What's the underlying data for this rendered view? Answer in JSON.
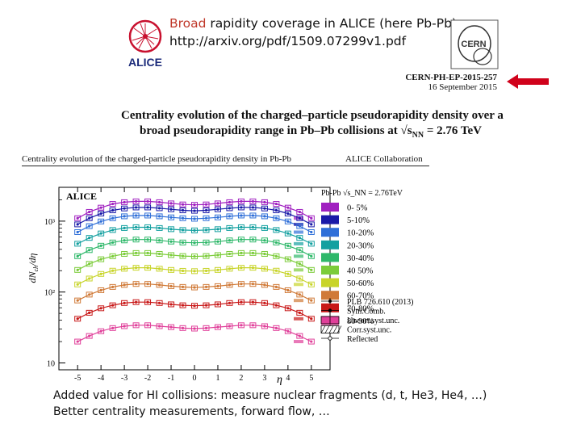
{
  "slide": {
    "title_highlight": "Broad",
    "title_rest": " rapidity coverage in ALICE (here Pb-Pb)",
    "arxiv_link": "http://arxiv.org/pdf/1509.07299v1.pdf",
    "alice_logo_text": "ALICE",
    "cern_logo_text": "CERN",
    "cern_report_id": "CERN-PH-EP-2015-257",
    "cern_report_date": "16 September 2015",
    "arrow_color": "#d0021b"
  },
  "paper": {
    "title_line1": "Centrality evolution of the charged–particle pseudorapidity density over a",
    "title_line2_prefix": "broad pseudorapidity range in Pb–Pb collisions at ",
    "title_energy": "√s",
    "title_energy_sub": "NN",
    "title_energy_value": " = 2.76 TeV",
    "header_left": "Centrality evolution of the charged-particle pseudorapidity density in Pb-Pb",
    "header_right": "ALICE Collaboration"
  },
  "chart_data": {
    "type": "scatter",
    "title": "",
    "experiment_label": "ALICE",
    "xlabel": "η",
    "ylabel": "dN_ch/dη",
    "ylabel_main": "dN",
    "ylabel_sub": "ch",
    "ylabel_tail": "/dη",
    "yscale": "log",
    "xlim": [
      -5.8,
      5.8
    ],
    "ylim": [
      8,
      3000
    ],
    "x_ticks": [
      -5,
      -4,
      -3,
      -2,
      -1,
      0,
      1,
      2,
      3,
      4,
      5
    ],
    "x_tick_labels": [
      "-5",
      "-4",
      "-3",
      "-2",
      "-1",
      "0",
      "1",
      "2",
      "3",
      "4",
      "5"
    ],
    "y_ticks": [
      10,
      100,
      1000
    ],
    "y_tick_labels": [
      "10",
      "10²",
      "10³"
    ],
    "legend_title": "Pb-Pb √s_NN = 2.76TeV",
    "legend_position": "right",
    "eta": [
      -5.0,
      -4.5,
      -4.0,
      -3.5,
      -3.0,
      -2.5,
      -2.0,
      -1.5,
      -1.0,
      -0.5,
      0.0,
      0.5,
      1.0,
      1.5,
      2.0,
      2.5,
      3.0,
      3.5,
      4.0,
      4.5,
      5.0
    ],
    "series": [
      {
        "name": "0- 5%",
        "color": "#a020c0",
        "values": [
          1100,
          1350,
          1550,
          1750,
          1850,
          1900,
          1900,
          1850,
          1780,
          1720,
          1700,
          1720,
          1780,
          1850,
          1900,
          1900,
          1850,
          1750,
          1550,
          1350,
          1100
        ]
      },
      {
        "name": "5-10%",
        "color": "#1a1aa8",
        "values": [
          900,
          1100,
          1280,
          1420,
          1510,
          1560,
          1560,
          1520,
          1470,
          1420,
          1400,
          1420,
          1470,
          1520,
          1560,
          1560,
          1510,
          1420,
          1280,
          1100,
          900
        ]
      },
      {
        "name": "10-20%",
        "color": "#2f6fd8",
        "values": [
          700,
          850,
          990,
          1100,
          1170,
          1200,
          1200,
          1170,
          1130,
          1100,
          1080,
          1100,
          1130,
          1170,
          1200,
          1200,
          1170,
          1100,
          990,
          850,
          700
        ]
      },
      {
        "name": "20-30%",
        "color": "#14a0a0",
        "values": [
          480,
          580,
          670,
          750,
          800,
          820,
          820,
          800,
          770,
          750,
          740,
          750,
          770,
          800,
          820,
          820,
          800,
          750,
          670,
          580,
          480
        ]
      },
      {
        "name": "30-40%",
        "color": "#2fb86a",
        "values": [
          320,
          390,
          450,
          500,
          535,
          550,
          550,
          535,
          515,
          500,
          495,
          500,
          515,
          535,
          550,
          550,
          535,
          500,
          450,
          390,
          320
        ]
      },
      {
        "name": "40 50%",
        "color": "#7ccc3a",
        "values": [
          205,
          250,
          290,
          320,
          345,
          355,
          355,
          345,
          332,
          322,
          318,
          322,
          332,
          345,
          355,
          355,
          345,
          320,
          290,
          250,
          205
        ]
      },
      {
        "name": "50-60%",
        "color": "#c8d42a",
        "values": [
          128,
          155,
          180,
          200,
          213,
          220,
          220,
          213,
          205,
          199,
          197,
          199,
          205,
          213,
          220,
          220,
          213,
          200,
          180,
          155,
          128
        ]
      },
      {
        "name": "60-70%",
        "color": "#d07a38",
        "values": [
          76,
          92,
          106,
          118,
          126,
          130,
          130,
          126,
          121,
          118,
          116,
          118,
          121,
          126,
          130,
          130,
          126,
          118,
          106,
          92,
          76
        ]
      },
      {
        "name": "70-80%",
        "color": "#c81818",
        "values": [
          42,
          51,
          59,
          65,
          70,
          72,
          72,
          70,
          67,
          65,
          64,
          65,
          67,
          70,
          72,
          72,
          70,
          65,
          59,
          51,
          42
        ]
      },
      {
        "name": "80-90%",
        "color": "#e0409a",
        "values": [
          20,
          24,
          28,
          31,
          33,
          34,
          34,
          33,
          32,
          31,
          30.5,
          31,
          32,
          33,
          34,
          34,
          33,
          31,
          28,
          24,
          20
        ]
      }
    ],
    "legend_extra": [
      "PLB 726.610 (2013)",
      "Sym.Comb.",
      "Uncorr.syst.unc.",
      "Corr.syst.unc.",
      "Reflected"
    ]
  },
  "notes": {
    "line1": "Added value for HI collisions: measure nuclear fragments (d, t, He3, He4, …)",
    "line2": "Better centrality measurements, forward flow, …"
  }
}
